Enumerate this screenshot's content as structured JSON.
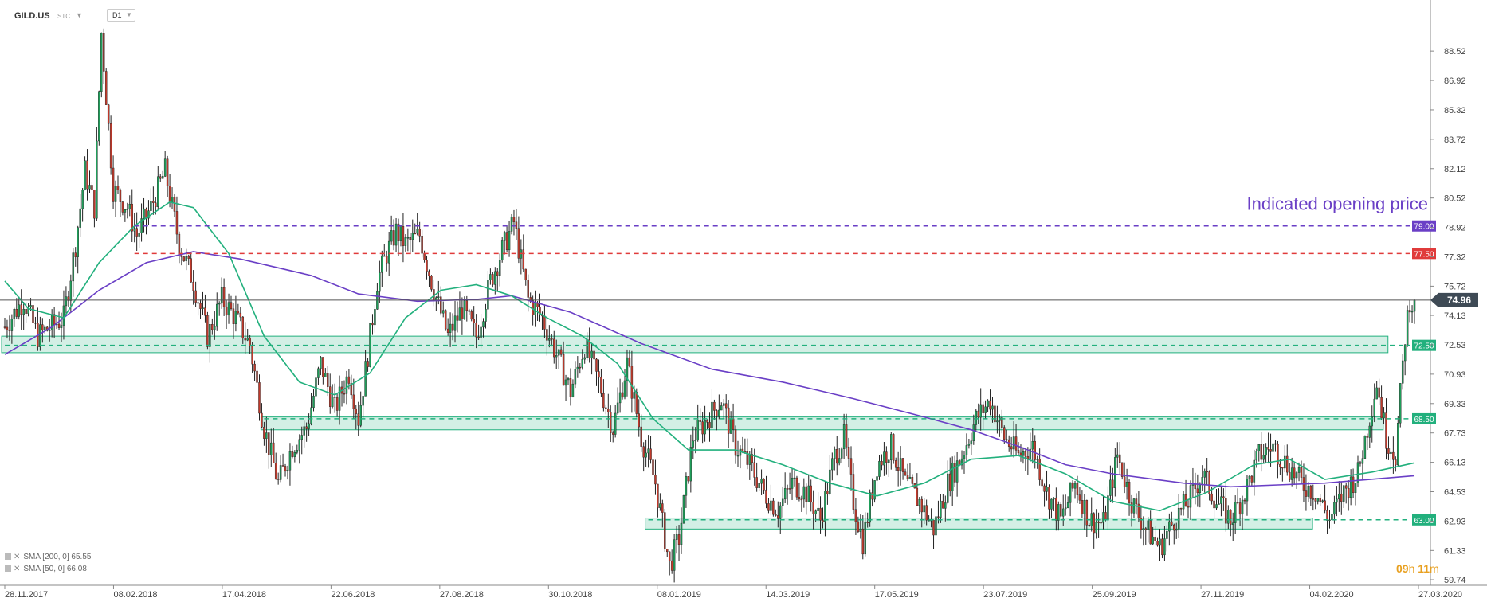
{
  "header": {
    "symbol": "GILD.US",
    "sub": "STC",
    "timeframe": "D1"
  },
  "legend": [
    {
      "text": "SMA [200, 0] 65.55",
      "color": "#6a3fc6"
    },
    {
      "text": "SMA [50, 0] 66.08",
      "color": "#22b07d"
    }
  ],
  "timer": {
    "h": "09",
    "hu": "h",
    "m": "11",
    "mu": "m"
  },
  "chart_data": {
    "type": "candlestick",
    "title": "",
    "instrument": "GILD.US",
    "timeframe": "D1",
    "ylim": [
      59.74,
      90.0
    ],
    "yticks": [
      "88.52",
      "86.92",
      "85.32",
      "83.72",
      "82.12",
      "80.52",
      "78.92",
      "77.32",
      "75.72",
      "74.13",
      "72.53",
      "70.93",
      "69.33",
      "67.73",
      "66.13",
      "64.53",
      "62.93",
      "61.33",
      "59.74"
    ],
    "xticks": [
      "28.11.2017",
      "08.02.2018",
      "17.04.2018",
      "22.06.2018",
      "27.08.2018",
      "30.10.2018",
      "08.01.2019",
      "14.03.2019",
      "17.05.2019",
      "23.07.2019",
      "25.09.2019",
      "27.11.2019",
      "04.02.2020",
      "27.03.2020"
    ],
    "current_price": {
      "value": 74.96,
      "label": "74.96"
    },
    "levels": [
      {
        "value": 79.0,
        "label": "79.00",
        "color": "#6a3fc6",
        "caption": "Indicated opening price"
      },
      {
        "value": 77.5,
        "label": "77.50",
        "color": "#e03b3b"
      },
      {
        "value": 72.5,
        "label": "72.50",
        "color": "#22b07d",
        "zone": [
          72.1,
          73.0
        ]
      },
      {
        "value": 68.5,
        "label": "68.50",
        "color": "#22b07d",
        "zone": [
          67.9,
          68.6
        ]
      },
      {
        "value": 63.0,
        "label": "63.00",
        "color": "#22b07d",
        "zone": [
          62.5,
          63.1
        ]
      }
    ],
    "price_path": [
      [
        0,
        73.5
      ],
      [
        8,
        75
      ],
      [
        14,
        73
      ],
      [
        25,
        74
      ],
      [
        30,
        78
      ],
      [
        34,
        82
      ],
      [
        38,
        80
      ],
      [
        41,
        89.5
      ],
      [
        46,
        81
      ],
      [
        52,
        80
      ],
      [
        56,
        78.5
      ],
      [
        62,
        80
      ],
      [
        68,
        82
      ],
      [
        74,
        78
      ],
      [
        80,
        76
      ],
      [
        86,
        73
      ],
      [
        92,
        75
      ],
      [
        98,
        74
      ],
      [
        104,
        72.5
      ],
      [
        110,
        68
      ],
      [
        116,
        65
      ],
      [
        122,
        67
      ],
      [
        128,
        68
      ],
      [
        134,
        71.5
      ],
      [
        140,
        69
      ],
      [
        146,
        71
      ],
      [
        150,
        68.5
      ],
      [
        154,
        72
      ],
      [
        158,
        76
      ],
      [
        162,
        77.5
      ],
      [
        166,
        78.7
      ],
      [
        170,
        78
      ],
      [
        176,
        78.5
      ],
      [
        182,
        75.5
      ],
      [
        188,
        73
      ],
      [
        194,
        74.5
      ],
      [
        200,
        73
      ],
      [
        206,
        76
      ],
      [
        212,
        78
      ],
      [
        216,
        79.2
      ],
      [
        222,
        75
      ],
      [
        228,
        74
      ],
      [
        234,
        72
      ],
      [
        240,
        70
      ],
      [
        246,
        72.5
      ],
      [
        252,
        70.5
      ],
      [
        258,
        68
      ],
      [
        264,
        71.5
      ],
      [
        270,
        67.5
      ],
      [
        276,
        65
      ],
      [
        282,
        60.5
      ],
      [
        286,
        62
      ],
      [
        292,
        67.5
      ],
      [
        298,
        68.5
      ],
      [
        304,
        69.5
      ],
      [
        310,
        67
      ],
      [
        316,
        66
      ],
      [
        322,
        64.5
      ],
      [
        328,
        63.5
      ],
      [
        334,
        65
      ],
      [
        340,
        64.5
      ],
      [
        346,
        63
      ],
      [
        352,
        66.5
      ],
      [
        356,
        67.5
      ],
      [
        360,
        64
      ],
      [
        364,
        61.8
      ],
      [
        370,
        66
      ],
      [
        376,
        67
      ],
      [
        382,
        65
      ],
      [
        388,
        64
      ],
      [
        394,
        62.5
      ],
      [
        400,
        65
      ],
      [
        406,
        66.5
      ],
      [
        412,
        68.5
      ],
      [
        418,
        69.5
      ],
      [
        424,
        67.5
      ],
      [
        430,
        66.5
      ],
      [
        436,
        67
      ],
      [
        442,
        64.5
      ],
      [
        448,
        63
      ],
      [
        454,
        65
      ],
      [
        460,
        63
      ],
      [
        466,
        62.8
      ],
      [
        472,
        66.5
      ],
      [
        478,
        64
      ],
      [
        484,
        62.5
      ],
      [
        490,
        61.5
      ],
      [
        496,
        63
      ],
      [
        502,
        64
      ],
      [
        508,
        65.5
      ],
      [
        514,
        64
      ],
      [
        520,
        63
      ],
      [
        526,
        64.5
      ],
      [
        532,
        66.5
      ],
      [
        538,
        67
      ],
      [
        544,
        66
      ],
      [
        550,
        65
      ],
      [
        556,
        64.5
      ],
      [
        562,
        63
      ],
      [
        568,
        64.5
      ],
      [
        574,
        65.5
      ],
      [
        578,
        68
      ],
      [
        582,
        70.5
      ],
      [
        586,
        67.5
      ],
      [
        590,
        66.5
      ],
      [
        594,
        73
      ],
      [
        596,
        75
      ],
      [
        598,
        74.5
      ]
    ],
    "series": [
      {
        "name": "SMA [200, 0] 65.55",
        "color": "#6a3fc6",
        "points": [
          [
            0,
            72.0
          ],
          [
            20,
            73.5
          ],
          [
            40,
            75.5
          ],
          [
            60,
            77.0
          ],
          [
            80,
            77.6
          ],
          [
            100,
            77.2
          ],
          [
            130,
            76.3
          ],
          [
            150,
            75.3
          ],
          [
            175,
            74.9
          ],
          [
            200,
            75.0
          ],
          [
            215,
            75.2
          ],
          [
            240,
            74.3
          ],
          [
            270,
            72.6
          ],
          [
            300,
            71.2
          ],
          [
            330,
            70.5
          ],
          [
            360,
            69.6
          ],
          [
            390,
            68.6
          ],
          [
            410,
            67.9
          ],
          [
            430,
            67.0
          ],
          [
            450,
            66.0
          ],
          [
            470,
            65.5
          ],
          [
            500,
            65.0
          ],
          [
            520,
            64.8
          ],
          [
            540,
            64.9
          ],
          [
            560,
            65.0
          ],
          [
            598,
            65.4
          ]
        ]
      },
      {
        "name": "SMA [50, 0] 66.08",
        "color": "#22b07d",
        "points": [
          [
            0,
            76.0
          ],
          [
            10,
            74.5
          ],
          [
            25,
            74.0
          ],
          [
            40,
            77.0
          ],
          [
            55,
            79.0
          ],
          [
            70,
            80.3
          ],
          [
            80,
            80.0
          ],
          [
            95,
            77.5
          ],
          [
            110,
            73.0
          ],
          [
            125,
            70.5
          ],
          [
            140,
            69.8
          ],
          [
            155,
            71.0
          ],
          [
            170,
            74.0
          ],
          [
            185,
            75.5
          ],
          [
            200,
            75.8
          ],
          [
            215,
            75.2
          ],
          [
            230,
            74.0
          ],
          [
            245,
            73.0
          ],
          [
            260,
            71.5
          ],
          [
            275,
            68.5
          ],
          [
            290,
            66.8
          ],
          [
            310,
            66.8
          ],
          [
            330,
            66.0
          ],
          [
            350,
            65.0
          ],
          [
            370,
            64.3
          ],
          [
            390,
            65.0
          ],
          [
            410,
            66.3
          ],
          [
            430,
            66.5
          ],
          [
            450,
            65.5
          ],
          [
            470,
            64.0
          ],
          [
            490,
            63.5
          ],
          [
            510,
            64.5
          ],
          [
            530,
            66.0
          ],
          [
            545,
            66.3
          ],
          [
            560,
            65.2
          ],
          [
            580,
            65.6
          ],
          [
            598,
            66.1
          ]
        ]
      }
    ]
  }
}
